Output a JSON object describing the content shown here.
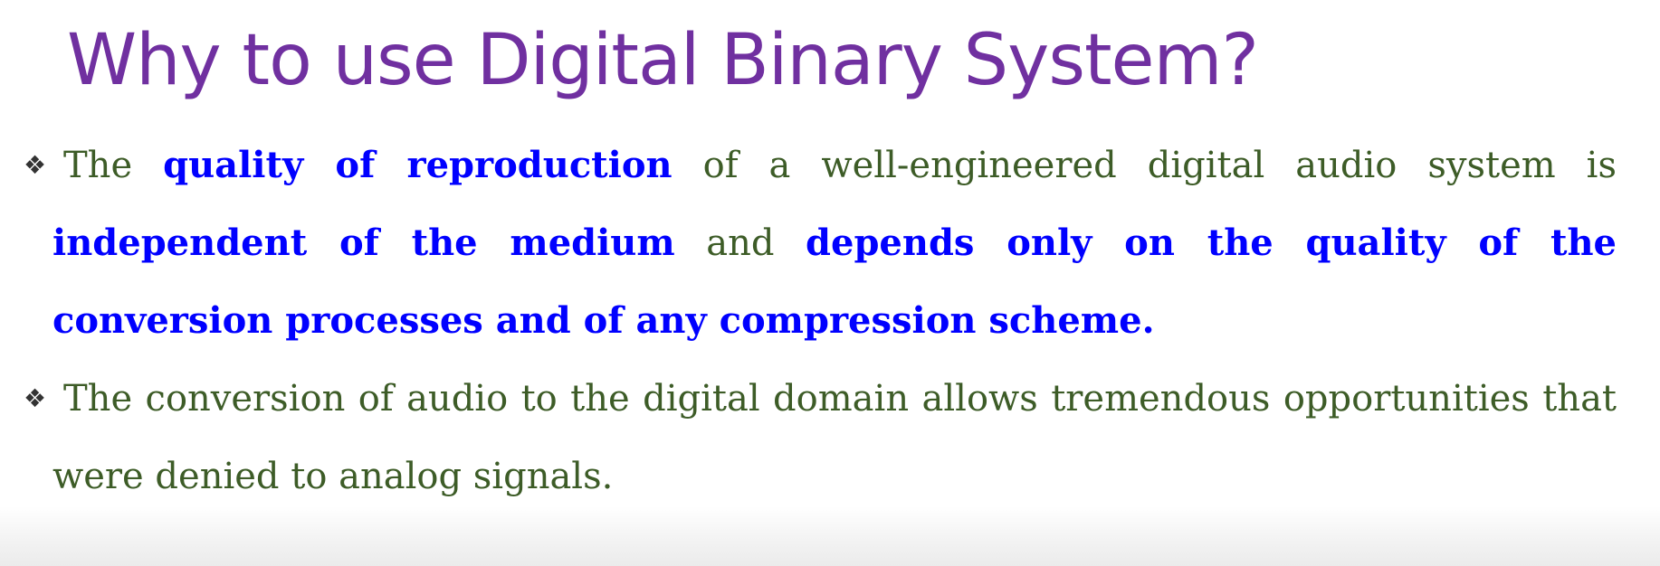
{
  "slide": {
    "title": "Why to use Digital Binary System?",
    "bullet_marker": "❖",
    "bullets": [
      {
        "segments": [
          {
            "text": "The ",
            "emphasis": false
          },
          {
            "text": "quality of reproduction",
            "emphasis": true
          },
          {
            "text": " of a well-engineered digital audio system is ",
            "emphasis": false
          },
          {
            "text": "independent of the medium",
            "emphasis": true
          },
          {
            "text": " and ",
            "emphasis": false
          },
          {
            "text": "depends only on the quality of the conversion processes and of any compression scheme.",
            "emphasis": true
          }
        ]
      },
      {
        "segments": [
          {
            "text": "The conversion of audio to the digital domain allows tremendous opportunities that were denied to analog signals.",
            "emphasis": false
          }
        ]
      }
    ]
  },
  "colors": {
    "title": "#7030a0",
    "body_text": "#3d5c27",
    "emphasis_text": "#0000ff",
    "bullet_marker": "#333333"
  }
}
